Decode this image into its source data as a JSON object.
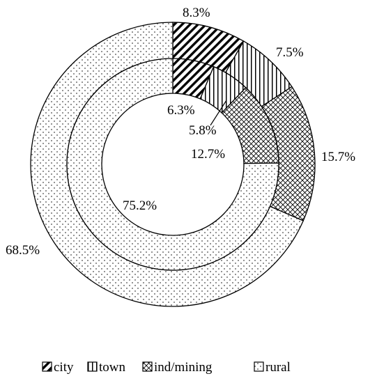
{
  "chart_data": {
    "type": "pie",
    "style": "concentric donut (two rings)",
    "categories": [
      "city",
      "town",
      "ind/mining",
      "rural"
    ],
    "series": [
      {
        "ring": "outer",
        "values": [
          8.3,
          7.5,
          15.7,
          68.5
        ],
        "labels": [
          "8.3%",
          "7.5%",
          "15.7%",
          "68.5%"
        ]
      },
      {
        "ring": "inner",
        "values": [
          6.3,
          5.8,
          12.7,
          75.2
        ],
        "labels": [
          "6.3%",
          "5.8%",
          "12.7%",
          "75.2%"
        ]
      }
    ],
    "patterns": [
      "diagonal-hatch",
      "vertical-lines",
      "crosshatch",
      "dots"
    ],
    "legend": {
      "placement": "bottom",
      "entries": [
        "city",
        "town",
        "ind/mining",
        "rural"
      ]
    },
    "colors": {
      "stroke": "#000000",
      "background": "#ffffff"
    }
  }
}
